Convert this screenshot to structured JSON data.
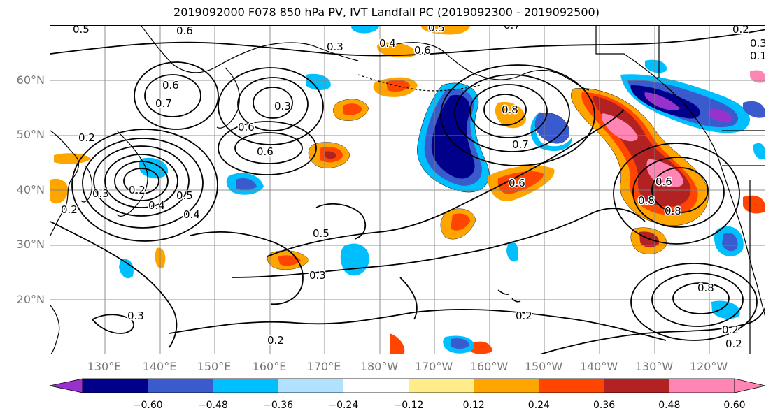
{
  "title": "2019092000 F078 850 hPa PV, IVT Landfall PC (2019092300 - 2019092500)",
  "map": {
    "lat_labels": [
      "60°N",
      "50°N",
      "40°N",
      "30°N",
      "20°N"
    ],
    "lon_labels": [
      "130°E",
      "140°E",
      "150°E",
      "160°E",
      "170°E",
      "180°W",
      "170°W",
      "160°W",
      "150°W",
      "140°W",
      "130°W",
      "120°W"
    ],
    "contour_labels": [
      "0.5",
      "0.6",
      "0.5",
      "0.7",
      "0.3",
      "0.2",
      "0.7",
      "0.6",
      "0.3",
      "0.6",
      "0.2",
      "0.3",
      "0.6",
      "0.2",
      "0.5",
      "0.4",
      "0.4",
      "0.5",
      "0.3",
      "0.2",
      "0.3",
      "0.2",
      "0.4",
      "0.8",
      "0.6",
      "0.7",
      "0.6",
      "0.8",
      "0.8",
      "0.8",
      "0.2",
      "0.2",
      "0.3",
      "0.2",
      "0.1",
      "0.6"
    ],
    "grid_color": "#808080",
    "contour_color": "#000000"
  },
  "colorbar": {
    "tick_labels": [
      "−0.60",
      "−0.48",
      "−0.36",
      "−0.24",
      "−0.12",
      "0.12",
      "0.24",
      "0.36",
      "0.48",
      "0.60"
    ],
    "colors": [
      "#9932CC",
      "#00008B",
      "#3A5BCD",
      "#00BFFF",
      "#B0E2FF",
      "#FFFFFF",
      "#FFEC8B",
      "#FFA500",
      "#FF4500",
      "#B22222",
      "#FF86B4",
      "#FF86B4"
    ]
  }
}
